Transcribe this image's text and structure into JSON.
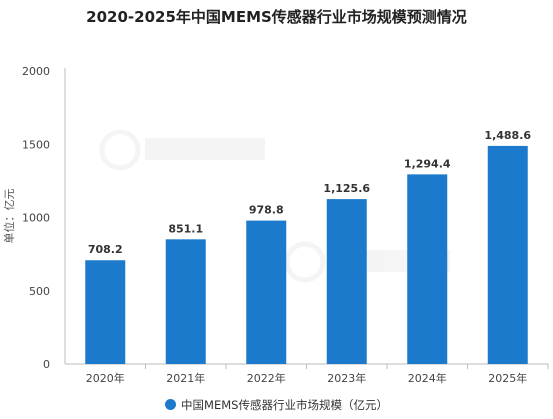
{
  "chart_data": {
    "type": "bar",
    "title": "2020-2025年中国MEMS传感器行业市场规模预测情况",
    "ylabel": "单位：亿元",
    "xlabel": "",
    "categories": [
      "2020年",
      "2021年",
      "2022年",
      "2023年",
      "2024年",
      "2025年"
    ],
    "series": [
      {
        "name": "中国MEMS传感器行业市场规模（亿元）",
        "values": [
          708.2,
          851.1,
          978.8,
          1125.6,
          1294.4,
          1488.6
        ],
        "value_labels": [
          "708.2",
          "851.1",
          "978.8",
          "1,125.6",
          "1,294.4",
          "1,488.6"
        ],
        "color": "#1b7acb"
      }
    ],
    "ylim": [
      0,
      2000
    ],
    "yticks": [
      0,
      500,
      1000,
      1500,
      2000
    ],
    "grid": false,
    "legend_position": "bottom"
  }
}
